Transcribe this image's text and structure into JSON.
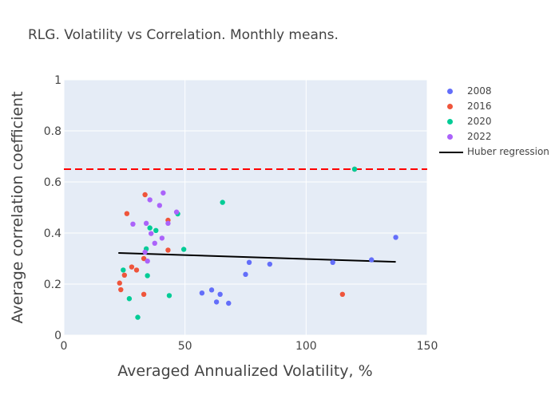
{
  "chart_data": {
    "type": "scatter",
    "title": "RLG. Volatility vs Correlation. Monthly means.",
    "xlabel": "Averaged Annualized Volatility, %",
    "ylabel": "Average correlation coefficient",
    "xlim": [
      0,
      150
    ],
    "ylim": [
      0,
      1
    ],
    "xticks": [
      0,
      50,
      100,
      150
    ],
    "yticks": [
      0,
      0.2,
      0.4,
      0.6,
      0.8,
      1
    ],
    "grid": true,
    "legend_position": "right",
    "reference_line": {
      "y": 0.65,
      "style": "dashed",
      "color": "#ff0000"
    },
    "series": [
      {
        "name": "2008",
        "color": "#636efa",
        "points": [
          [
            57,
            0.165
          ],
          [
            61,
            0.177
          ],
          [
            63,
            0.13
          ],
          [
            64.5,
            0.16
          ],
          [
            68,
            0.125
          ],
          [
            75,
            0.238
          ],
          [
            76.5,
            0.285
          ],
          [
            85,
            0.278
          ],
          [
            111,
            0.285
          ],
          [
            127,
            0.295
          ],
          [
            137,
            0.383
          ]
        ]
      },
      {
        "name": "2016",
        "color": "#ef553b",
        "points": [
          [
            23,
            0.204
          ],
          [
            23.5,
            0.178
          ],
          [
            25,
            0.235
          ],
          [
            26,
            0.476
          ],
          [
            28,
            0.267
          ],
          [
            30,
            0.255
          ],
          [
            33,
            0.16
          ],
          [
            33,
            0.3
          ],
          [
            33.5,
            0.55
          ],
          [
            43,
            0.45
          ],
          [
            43,
            0.333
          ],
          [
            115,
            0.16
          ],
          [
            120,
            0.65
          ]
        ]
      },
      {
        "name": "2020",
        "color": "#00cc96",
        "points": [
          [
            24.5,
            0.255
          ],
          [
            27,
            0.143
          ],
          [
            30.5,
            0.07
          ],
          [
            34,
            0.338
          ],
          [
            34.5,
            0.233
          ],
          [
            35.5,
            0.42
          ],
          [
            38,
            0.41
          ],
          [
            43.5,
            0.155
          ],
          [
            47,
            0.475
          ],
          [
            49.5,
            0.336
          ],
          [
            65.5,
            0.52
          ],
          [
            120,
            0.65
          ]
        ]
      },
      {
        "name": "2022",
        "color": "#ab63fa",
        "points": [
          [
            28.5,
            0.435
          ],
          [
            33.5,
            0.325
          ],
          [
            34,
            0.438
          ],
          [
            34.5,
            0.29
          ],
          [
            35.5,
            0.53
          ],
          [
            36,
            0.398
          ],
          [
            37.5,
            0.36
          ],
          [
            39.5,
            0.508
          ],
          [
            40.5,
            0.38
          ],
          [
            41,
            0.557
          ],
          [
            43,
            0.438
          ],
          [
            46.5,
            0.482
          ]
        ]
      }
    ],
    "regression": {
      "name": "Huber regression",
      "color": "#000000",
      "x": [
        22.5,
        137
      ],
      "y": [
        0.322,
        0.287
      ]
    }
  }
}
